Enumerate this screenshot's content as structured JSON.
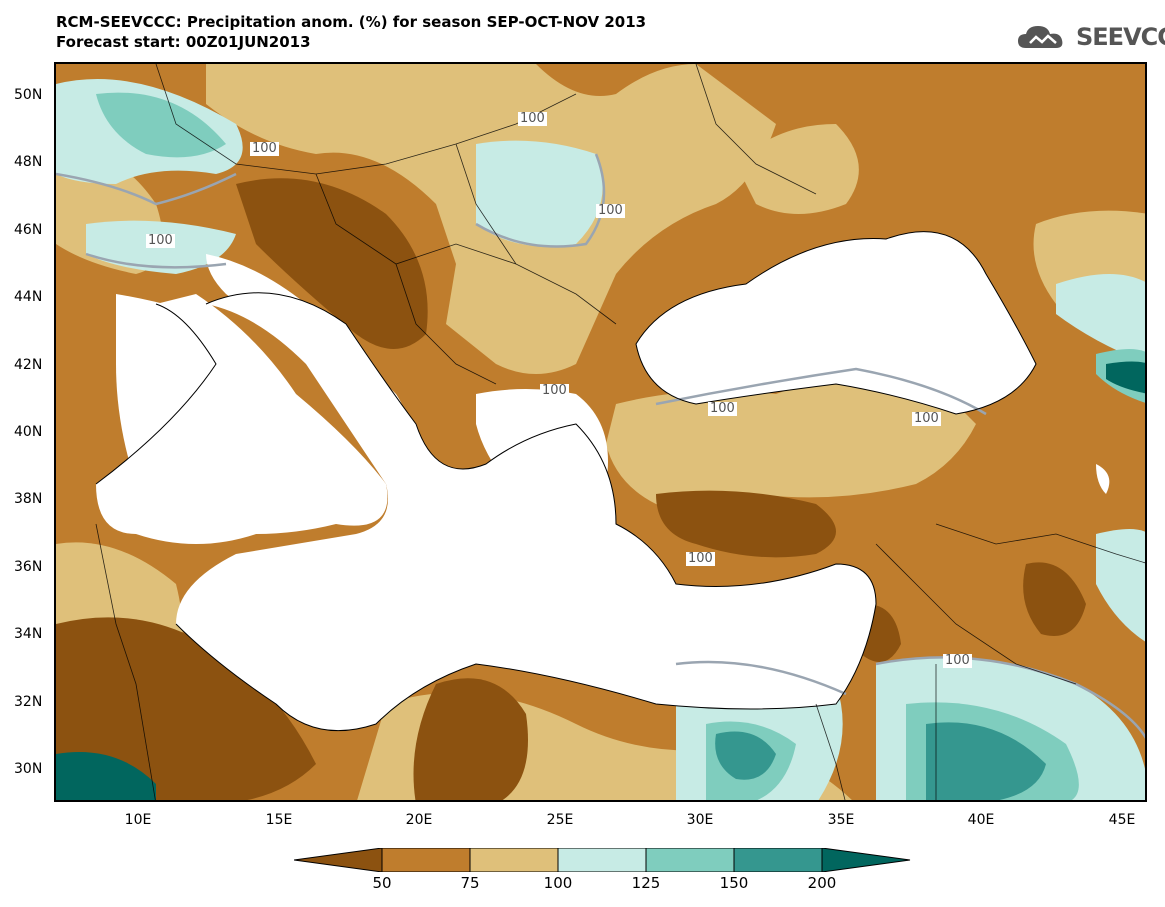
{
  "title": {
    "line1": "RCM-SEEVCCC: Precipitation anom. (%) for season SEP-OCT-NOV 2013",
    "line2": "Forecast start: 00Z01JUN2013"
  },
  "logo": {
    "text": "SEEVCCC",
    "icon": "cloud-icon"
  },
  "map": {
    "lat_labels": [
      "50N",
      "48N",
      "46N",
      "44N",
      "42N",
      "40N",
      "38N",
      "36N",
      "34N",
      "32N",
      "30N"
    ],
    "lon_labels": [
      "10E",
      "15E",
      "20E",
      "25E",
      "30E",
      "35E",
      "40E",
      "45E"
    ],
    "contour_labels": [
      "100",
      "100",
      "100",
      "100",
      "100",
      "100",
      "100",
      "100",
      "100"
    ],
    "lat_range": [
      29,
      51
    ],
    "lon_range": [
      7,
      46
    ]
  },
  "colorbar": {
    "labels": [
      "50",
      "75",
      "100",
      "125",
      "150",
      "200"
    ],
    "colors": [
      "#8c5210",
      "#bf7d2d",
      "#dfc07a",
      "#c7ebe5",
      "#7fcdbe",
      "#35978f",
      "#01665e"
    ]
  },
  "palette": {
    "very_dry": "#8c5210",
    "dry": "#bf7d2d",
    "slightly_dry": "#dfc07a",
    "slightly_wet": "#c7ebe5",
    "wet": "#7fcdbe",
    "very_wet": "#35978f",
    "extreme_wet": "#01665e"
  }
}
